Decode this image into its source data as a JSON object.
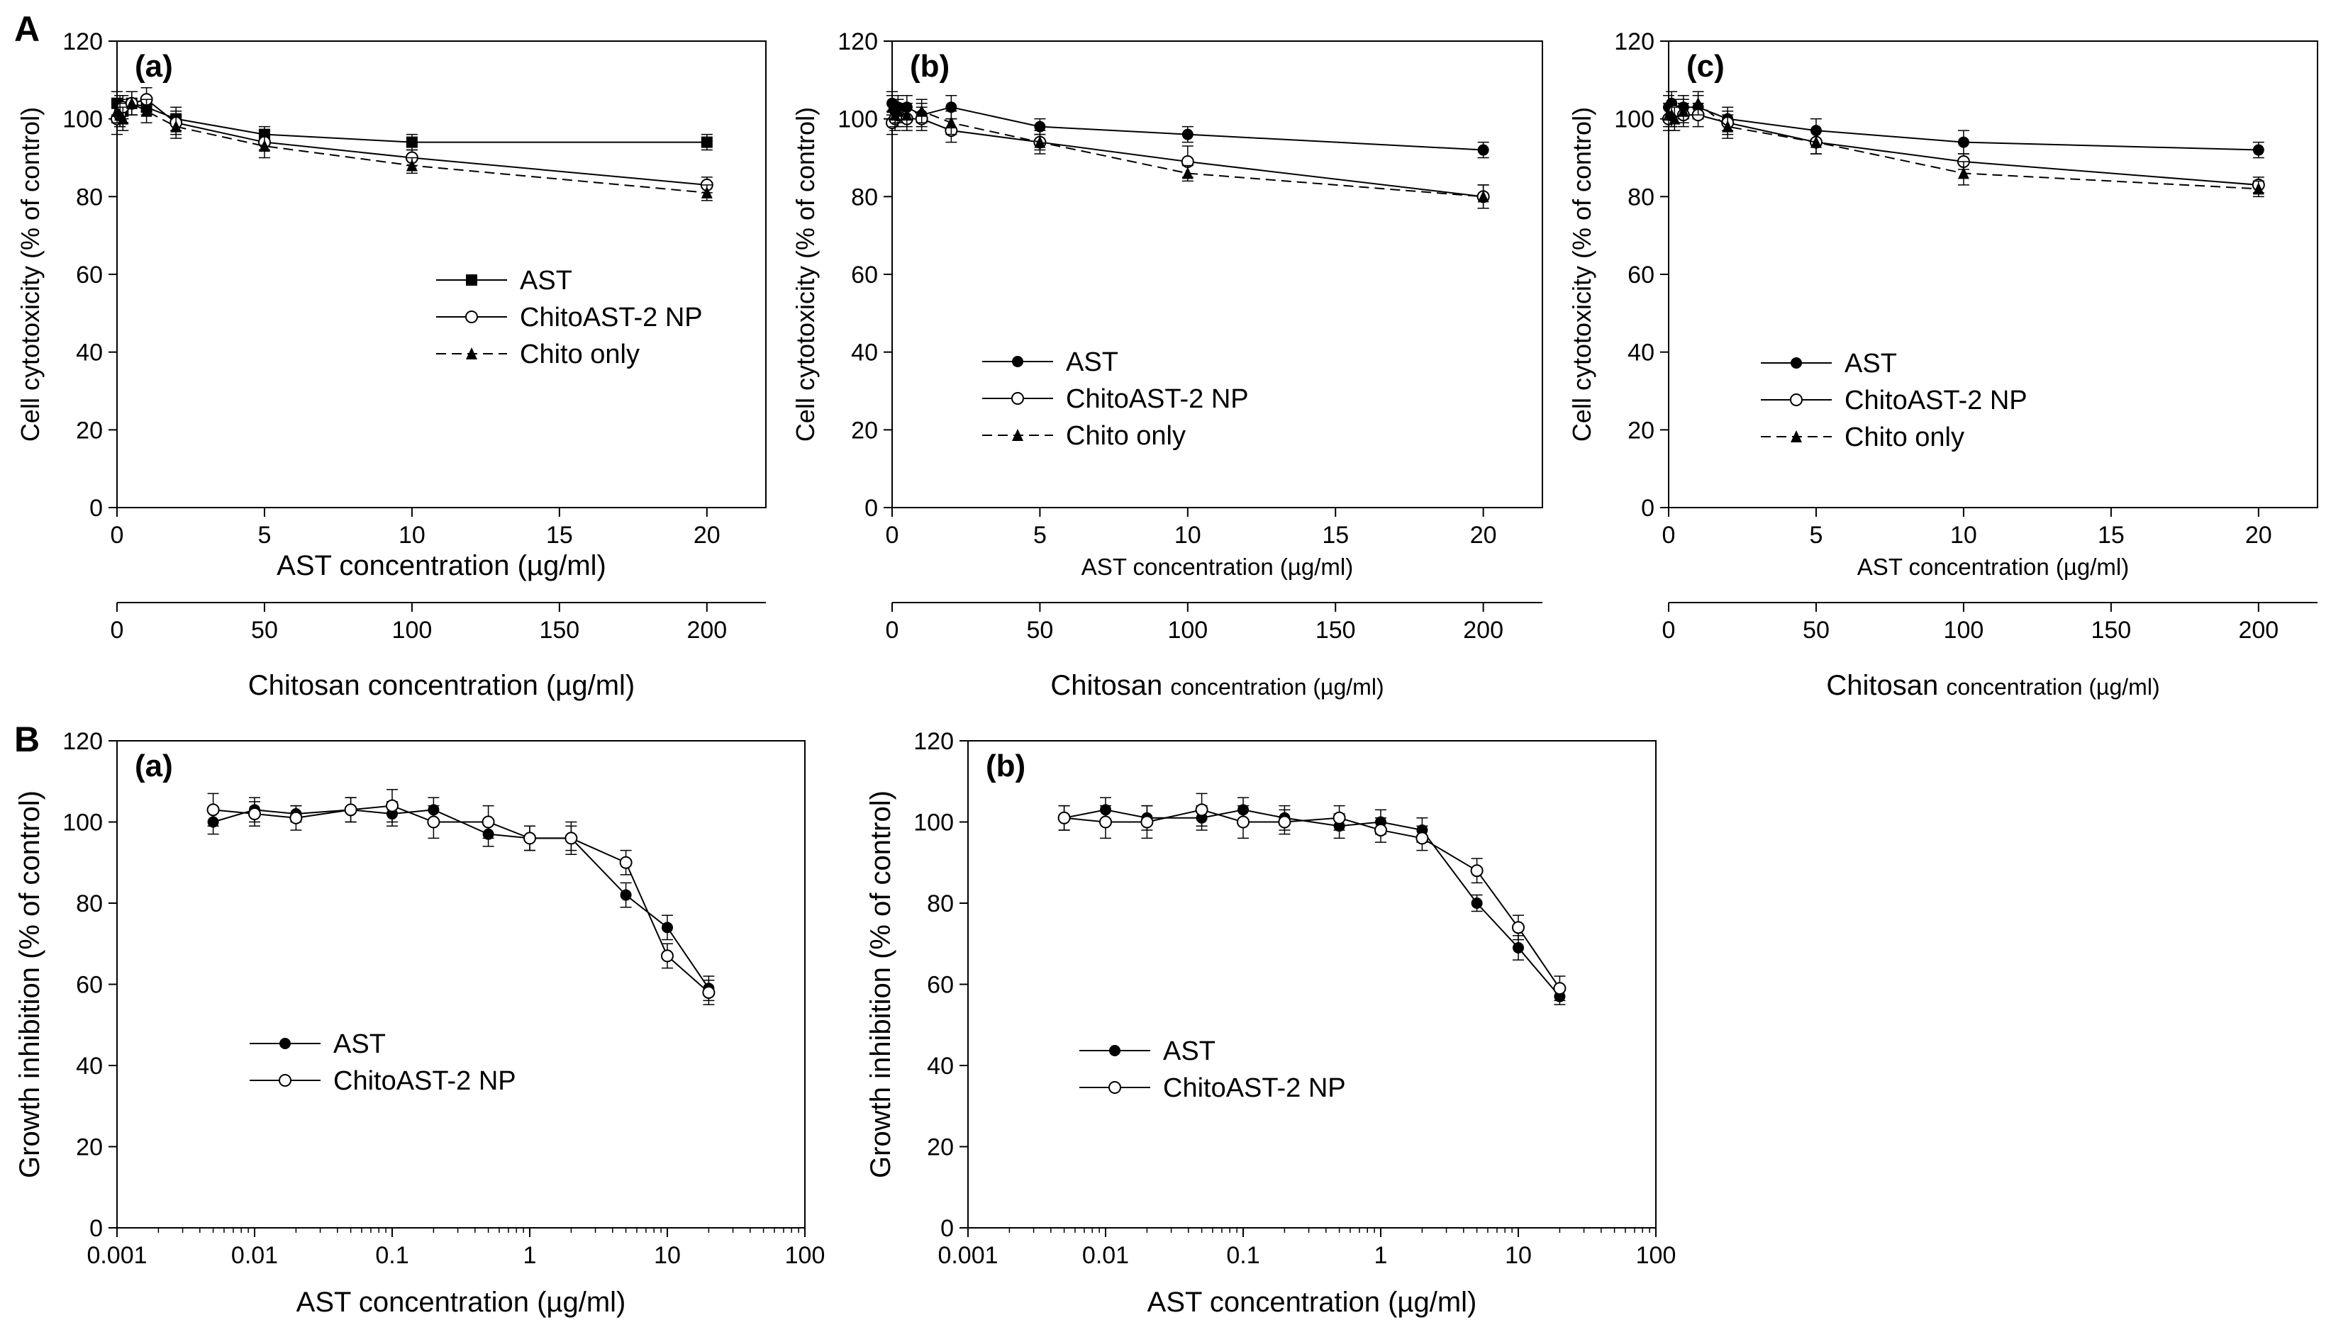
{
  "figure": {
    "section_a_label": "A",
    "section_b_label": "B"
  },
  "chart_data": [
    {
      "id": "A-a",
      "type": "line",
      "panel_label": "(a)",
      "ylabel": "Cell cytotoxicity (% of control)",
      "xlabel": "AST concentration (µg/ml)",
      "x2label": "Chitosan concentration (µg/ml)",
      "xlim": [
        0,
        22
      ],
      "ylim": [
        0,
        120
      ],
      "x_ticks": [
        0,
        5,
        10,
        15,
        20
      ],
      "y_ticks": [
        0,
        20,
        40,
        60,
        80,
        100,
        120
      ],
      "x2_ticks": [
        0,
        50,
        100,
        150,
        200
      ],
      "x2_scale": 10,
      "legend": {
        "position": "center",
        "entries": [
          "AST",
          "ChitoAST-2 NP",
          "Chito only"
        ]
      },
      "series": [
        {
          "name": "AST",
          "marker": "filled-square",
          "dash": "none",
          "x": [
            0,
            0.1,
            0.2,
            0.5,
            1,
            2,
            5,
            10,
            20
          ],
          "y": [
            104,
            103,
            102,
            104,
            103,
            100,
            96,
            94,
            94
          ],
          "err": [
            3,
            3,
            3,
            3,
            2,
            3,
            2,
            2,
            2
          ]
        },
        {
          "name": "ChitoAST-2 NP",
          "marker": "open-circle",
          "dash": "none",
          "x": [
            0,
            0.1,
            0.2,
            0.5,
            1,
            2,
            5,
            10,
            20
          ],
          "y": [
            100,
            101,
            103,
            104,
            105,
            99,
            94,
            90,
            83
          ],
          "err": [
            4,
            3,
            3,
            3,
            3,
            3,
            2,
            2,
            2
          ]
        },
        {
          "name": "Chito only",
          "marker": "filled-triangle",
          "dash": "dashed",
          "x": [
            0,
            0.1,
            0.2,
            0.5,
            1,
            2,
            5,
            10,
            20
          ],
          "y": [
            102,
            101,
            100,
            104,
            102,
            98,
            93,
            88,
            81
          ],
          "err": [
            3,
            3,
            3,
            3,
            3,
            3,
            3,
            2,
            2
          ]
        }
      ]
    },
    {
      "id": "A-b",
      "type": "line",
      "panel_label": "(b)",
      "ylabel": "Cell cytotoxicity (% of control)",
      "xlabel": "AST concentration (µg/ml)",
      "x2label_big": "Chitosan",
      "x2label_small": "concentration (µg/ml)",
      "xlim": [
        0,
        22
      ],
      "ylim": [
        0,
        120
      ],
      "x_ticks": [
        0,
        5,
        10,
        15,
        20
      ],
      "y_ticks": [
        0,
        20,
        40,
        60,
        80,
        100,
        120
      ],
      "x2_ticks": [
        0,
        50,
        100,
        150,
        200
      ],
      "x2_scale": 10,
      "legend": {
        "position": "center-left",
        "entries": [
          "AST",
          "ChitoAST-2 NP",
          "Chito only"
        ]
      },
      "series": [
        {
          "name": "AST",
          "marker": "filled-circle",
          "dash": "none",
          "x": [
            0,
            0.1,
            0.2,
            0.5,
            1,
            2,
            5,
            10,
            20
          ],
          "y": [
            104,
            102,
            103,
            103,
            101,
            103,
            98,
            96,
            92
          ],
          "err": [
            3,
            3,
            3,
            3,
            3,
            3,
            2,
            2,
            2
          ]
        },
        {
          "name": "ChitoAST-2 NP",
          "marker": "open-circle",
          "dash": "none",
          "x": [
            0,
            0.1,
            0.2,
            0.5,
            1,
            2,
            5,
            10,
            20
          ],
          "y": [
            99,
            100,
            101,
            100,
            100,
            97,
            94,
            89,
            80
          ],
          "err": [
            3,
            3,
            3,
            3,
            3,
            3,
            2,
            4,
            3
          ]
        },
        {
          "name": "Chito only",
          "marker": "filled-triangle",
          "dash": "dashed",
          "x": [
            0,
            0.1,
            0.2,
            0.5,
            1,
            2,
            5,
            10,
            20
          ],
          "y": [
            103,
            101,
            102,
            101,
            102,
            99,
            94,
            86,
            80
          ],
          "err": [
            3,
            3,
            3,
            3,
            3,
            3,
            3,
            2,
            3
          ]
        }
      ]
    },
    {
      "id": "A-c",
      "type": "line",
      "panel_label": "(c)",
      "ylabel": "Cell cytotoxicity (% of control)",
      "xlabel": "AST concentration (µg/ml)",
      "x2label_big": "Chitosan",
      "x2label_small": "concentration (µg/ml)",
      "xlim": [
        0,
        22
      ],
      "ylim": [
        0,
        120
      ],
      "x_ticks": [
        0,
        5,
        10,
        15,
        20
      ],
      "y_ticks": [
        0,
        20,
        40,
        60,
        80,
        100,
        120
      ],
      "x2_ticks": [
        0,
        50,
        100,
        150,
        200
      ],
      "x2_scale": 10,
      "legend": {
        "position": "center-left",
        "entries": [
          "AST",
          "ChitoAST-2 NP",
          "Chito only"
        ]
      },
      "series": [
        {
          "name": "AST",
          "marker": "filled-circle",
          "dash": "none",
          "x": [
            0,
            0.1,
            0.2,
            0.5,
            1,
            2,
            5,
            10,
            20
          ],
          "y": [
            103,
            104,
            102,
            103,
            103,
            100,
            97,
            94,
            92
          ],
          "err": [
            3,
            3,
            3,
            3,
            3,
            3,
            3,
            3,
            2
          ]
        },
        {
          "name": "ChitoAST-2 NP",
          "marker": "open-circle",
          "dash": "none",
          "x": [
            0,
            0.1,
            0.2,
            0.5,
            1,
            2,
            5,
            10,
            20
          ],
          "y": [
            100,
            101,
            102,
            101,
            101,
            99,
            94,
            89,
            83
          ],
          "err": [
            3,
            3,
            3,
            3,
            3,
            3,
            3,
            2,
            2
          ]
        },
        {
          "name": "Chito only",
          "marker": "filled-triangle",
          "dash": "dashed",
          "x": [
            0,
            0.1,
            0.2,
            0.5,
            1,
            2,
            5,
            10,
            20
          ],
          "y": [
            101,
            101,
            100,
            102,
            104,
            98,
            94,
            86,
            82
          ],
          "err": [
            3,
            3,
            3,
            3,
            3,
            3,
            3,
            3,
            2
          ]
        }
      ]
    },
    {
      "id": "B-a",
      "type": "line",
      "x_scale": "log",
      "panel_label": "(a)",
      "ylabel": "Growth inhibition (% of control)",
      "xlabel": "AST concentration (µg/ml)",
      "xlim": [
        0.001,
        100
      ],
      "ylim": [
        0,
        120
      ],
      "x_ticks": [
        0.001,
        0.01,
        0.1,
        1,
        10,
        100
      ],
      "x_tick_labels": [
        "0.001",
        "0.01",
        "0.1",
        "1",
        "10",
        "100"
      ],
      "y_ticks": [
        0,
        20,
        40,
        60,
        80,
        100,
        120
      ],
      "legend": {
        "position": "lower-left",
        "entries": [
          "AST",
          "ChitoAST-2 NP"
        ]
      },
      "series": [
        {
          "name": "AST",
          "marker": "filled-circle",
          "dash": "none",
          "x": [
            0.005,
            0.01,
            0.02,
            0.05,
            0.1,
            0.2,
            0.5,
            1,
            2,
            5,
            10,
            20
          ],
          "y": [
            100,
            103,
            102,
            103,
            102,
            103,
            97,
            96,
            96,
            82,
            74,
            59
          ],
          "err": [
            3,
            3,
            2,
            3,
            3,
            3,
            3,
            3,
            3,
            3,
            3,
            3
          ]
        },
        {
          "name": "ChitoAST-2 NP",
          "marker": "open-circle",
          "dash": "none",
          "x": [
            0.005,
            0.01,
            0.02,
            0.05,
            0.1,
            0.2,
            0.5,
            1,
            2,
            5,
            10,
            20
          ],
          "y": [
            103,
            102,
            101,
            103,
            104,
            100,
            100,
            96,
            96,
            90,
            67,
            58
          ],
          "err": [
            4,
            3,
            3,
            3,
            4,
            4,
            4,
            3,
            4,
            3,
            3,
            3
          ]
        }
      ]
    },
    {
      "id": "B-b",
      "type": "line",
      "x_scale": "log",
      "panel_label": "(b)",
      "ylabel": "Growth inhibition (% of control)",
      "xlabel": "AST concentration (µg/ml)",
      "xlim": [
        0.001,
        100
      ],
      "ylim": [
        0,
        120
      ],
      "x_ticks": [
        0.001,
        0.01,
        0.1,
        1,
        10,
        100
      ],
      "x_tick_labels": [
        "0.001",
        "0.01",
        "0.1",
        "1",
        "10",
        "100"
      ],
      "y_ticks": [
        0,
        20,
        40,
        60,
        80,
        100,
        120
      ],
      "legend": {
        "position": "center-left",
        "entries": [
          "AST",
          "ChitoAST-2 NP"
        ]
      },
      "series": [
        {
          "name": "AST",
          "marker": "filled-circle",
          "dash": "none",
          "x": [
            0.005,
            0.01,
            0.02,
            0.05,
            0.1,
            0.2,
            0.5,
            1,
            2,
            5,
            10,
            20
          ],
          "y": [
            101,
            103,
            101,
            101,
            103,
            101,
            99,
            100,
            98,
            80,
            69,
            57
          ],
          "err": [
            3,
            3,
            3,
            3,
            3,
            3,
            3,
            3,
            3,
            2,
            3,
            2
          ]
        },
        {
          "name": "ChitoAST-2 NP",
          "marker": "open-circle",
          "dash": "none",
          "x": [
            0.005,
            0.01,
            0.02,
            0.05,
            0.1,
            0.2,
            0.5,
            1,
            2,
            5,
            10,
            20
          ],
          "y": [
            101,
            100,
            100,
            103,
            100,
            100,
            101,
            98,
            96,
            88,
            74,
            59
          ],
          "err": [
            3,
            4,
            4,
            4,
            4,
            3,
            3,
            3,
            3,
            3,
            3,
            3
          ]
        }
      ]
    }
  ]
}
